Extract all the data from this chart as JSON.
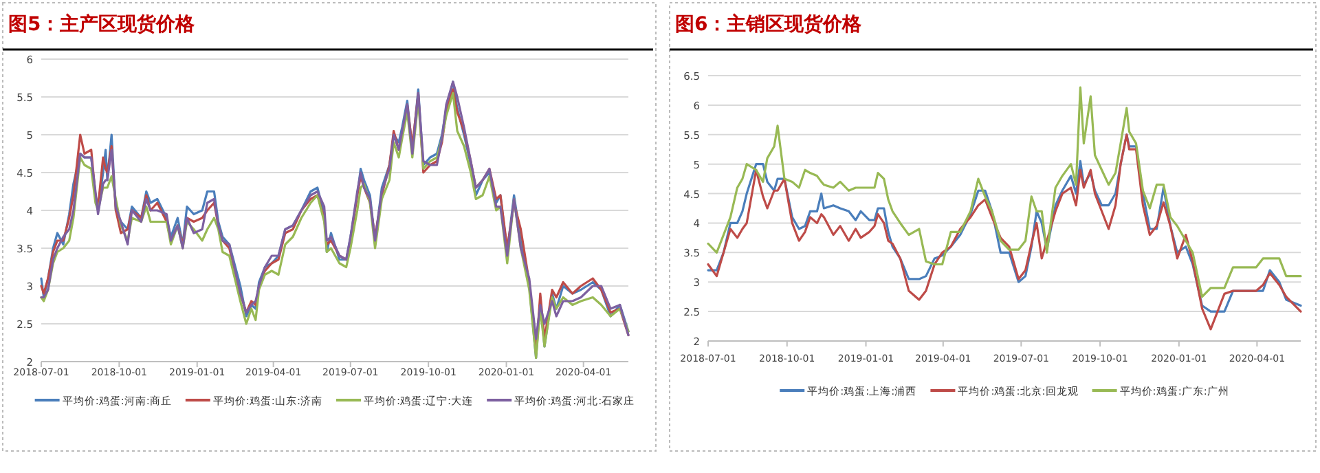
{
  "chart_data": [
    {
      "type": "line",
      "title": "图5：主产区现货价格",
      "grid": "y",
      "legend": "bottom",
      "ylim": [
        2,
        6
      ],
      "yticks": [
        2,
        2.5,
        3,
        3.5,
        4,
        4.5,
        5,
        5.5,
        6
      ],
      "xlim": [
        "2018-07-01",
        "2020-05-24"
      ],
      "xticks": [
        "2018-07-01",
        "2018-10-01",
        "2019-01-01",
        "2019-04-01",
        "2019-07-01",
        "2019-10-01",
        "2020-01-01",
        "2020-04-01"
      ],
      "x": [
        "2018-07-01",
        "2018-07-04",
        "2018-07-09",
        "2018-07-15",
        "2018-07-20",
        "2018-07-27",
        "2018-08-03",
        "2018-08-08",
        "2018-08-16",
        "2018-08-21",
        "2018-08-29",
        "2018-09-03",
        "2018-09-06",
        "2018-09-12",
        "2018-09-15",
        "2018-09-17",
        "2018-09-22",
        "2018-09-27",
        "2018-10-03",
        "2018-10-11",
        "2018-10-16",
        "2018-10-27",
        "2018-11-02",
        "2018-11-07",
        "2018-11-15",
        "2018-11-26",
        "2018-12-01",
        "2018-12-09",
        "2018-12-15",
        "2018-12-20",
        "2018-12-28",
        "2019-01-07",
        "2019-01-13",
        "2019-01-21",
        "2019-01-26",
        "2019-01-31",
        "2019-02-08",
        "2019-02-21",
        "2019-02-28",
        "2019-03-06",
        "2019-03-11",
        "2019-03-15",
        "2019-03-22",
        "2019-03-30",
        "2019-04-07",
        "2019-04-15",
        "2019-04-24",
        "2019-05-04",
        "2019-05-15",
        "2019-05-23",
        "2019-05-31",
        "2019-06-03",
        "2019-06-08",
        "2019-06-18",
        "2019-06-26",
        "2019-07-01",
        "2019-07-09",
        "2019-07-13",
        "2019-07-17",
        "2019-07-24",
        "2019-07-30",
        "2019-08-07",
        "2019-08-16",
        "2019-08-21",
        "2019-08-27",
        "2019-08-31",
        "2019-09-06",
        "2019-09-12",
        "2019-09-19",
        "2019-09-25",
        "2019-10-03",
        "2019-10-11",
        "2019-10-17",
        "2019-10-22",
        "2019-10-30",
        "2019-11-04",
        "2019-11-12",
        "2019-11-20",
        "2019-11-26",
        "2019-12-04",
        "2019-12-12",
        "2019-12-20",
        "2019-12-25",
        "2020-01-02",
        "2020-01-10",
        "2020-01-18",
        "2020-01-28",
        "2020-02-05",
        "2020-02-10",
        "2020-02-15",
        "2020-02-24",
        "2020-02-29",
        "2020-03-08",
        "2020-03-19",
        "2020-03-29",
        "2020-04-12",
        "2020-04-22",
        "2020-05-03",
        "2020-05-14",
        "2020-05-24"
      ],
      "series": [
        {
          "name": "平均价:鸡蛋:河南:商丘",
          "color": "#4a7ebb",
          "values": [
            3.1,
            2.85,
            3.1,
            3.5,
            3.7,
            3.55,
            3.95,
            4.35,
            4.75,
            4.7,
            4.7,
            4.2,
            4.0,
            4.5,
            4.8,
            4.4,
            5.0,
            4.0,
            3.85,
            3.75,
            4.05,
            3.9,
            4.25,
            4.1,
            4.15,
            3.9,
            3.65,
            3.9,
            3.55,
            4.05,
            3.95,
            4.0,
            4.25,
            4.25,
            3.85,
            3.65,
            3.55,
            3.0,
            2.6,
            2.75,
            2.7,
            3.05,
            3.25,
            3.3,
            3.4,
            3.75,
            3.8,
            4.0,
            4.25,
            4.3,
            3.95,
            3.45,
            3.7,
            3.35,
            3.35,
            3.65,
            4.2,
            4.55,
            4.4,
            4.2,
            3.6,
            4.3,
            4.6,
            5.0,
            4.9,
            5.1,
            5.45,
            4.8,
            5.6,
            4.6,
            4.7,
            4.75,
            5.0,
            5.35,
            5.7,
            5.35,
            5.0,
            4.6,
            4.2,
            4.4,
            4.5,
            4.1,
            4.2,
            3.45,
            4.2,
            3.6,
            3.0,
            2.05,
            2.8,
            2.2,
            2.9,
            2.7,
            3.0,
            2.9,
            2.95,
            3.05,
            2.95,
            2.6,
            2.75,
            2.4
          ]
        },
        {
          "name": "平均价:鸡蛋:山东:济南",
          "color": "#be4b48",
          "values": [
            3.0,
            2.9,
            3.1,
            3.45,
            3.6,
            3.6,
            3.9,
            4.2,
            5.0,
            4.75,
            4.8,
            4.2,
            4.05,
            4.7,
            4.55,
            4.5,
            4.85,
            4.0,
            3.7,
            3.75,
            4.0,
            3.9,
            4.2,
            4.0,
            4.1,
            3.85,
            3.6,
            3.8,
            3.55,
            3.9,
            3.85,
            3.9,
            4.0,
            4.1,
            3.8,
            3.6,
            3.5,
            2.9,
            2.65,
            2.8,
            2.75,
            3.0,
            3.2,
            3.3,
            3.35,
            3.7,
            3.75,
            4.0,
            4.15,
            4.2,
            3.9,
            3.55,
            3.6,
            3.4,
            3.35,
            3.6,
            4.2,
            4.45,
            4.3,
            4.1,
            3.65,
            4.2,
            4.6,
            5.05,
            4.8,
            5.0,
            5.4,
            4.85,
            5.55,
            4.5,
            4.6,
            4.65,
            4.9,
            5.3,
            5.6,
            5.3,
            5.05,
            4.65,
            4.3,
            4.4,
            4.55,
            4.15,
            4.2,
            3.5,
            4.1,
            3.75,
            3.05,
            2.1,
            2.9,
            2.3,
            2.95,
            2.85,
            3.05,
            2.9,
            3.0,
            3.1,
            2.95,
            2.65,
            2.7,
            2.35
          ]
        },
        {
          "name": "平均价:鸡蛋:辽宁:大连",
          "color": "#98b954",
          "values": [
            2.85,
            2.8,
            2.95,
            3.3,
            3.45,
            3.5,
            3.6,
            3.9,
            4.7,
            4.6,
            4.55,
            4.1,
            4.0,
            4.3,
            4.3,
            4.3,
            4.45,
            4.15,
            3.8,
            3.6,
            3.9,
            3.85,
            4.05,
            3.85,
            3.85,
            3.85,
            3.55,
            3.8,
            3.5,
            3.85,
            3.75,
            3.6,
            3.75,
            3.9,
            3.75,
            3.45,
            3.4,
            2.8,
            2.5,
            2.7,
            2.55,
            2.95,
            3.15,
            3.2,
            3.15,
            3.55,
            3.65,
            3.9,
            4.1,
            4.2,
            3.85,
            3.45,
            3.5,
            3.3,
            3.25,
            3.5,
            4.0,
            4.3,
            4.35,
            4.1,
            3.5,
            4.15,
            4.4,
            4.9,
            4.7,
            4.95,
            5.3,
            4.7,
            5.45,
            4.55,
            4.65,
            4.7,
            4.95,
            5.25,
            5.55,
            5.05,
            4.85,
            4.5,
            4.15,
            4.2,
            4.45,
            4.0,
            4.05,
            3.3,
            4.15,
            3.5,
            2.95,
            2.05,
            2.7,
            2.2,
            2.85,
            2.7,
            2.85,
            2.75,
            2.8,
            2.85,
            2.75,
            2.6,
            2.7,
            2.4
          ]
        },
        {
          "name": "平均价:鸡蛋:河北:石家庄",
          "color": "#7d60a0",
          "values": [
            2.85,
            2.85,
            2.95,
            3.35,
            3.5,
            3.65,
            3.75,
            4.0,
            4.75,
            4.7,
            4.7,
            4.25,
            3.95,
            4.35,
            4.4,
            4.4,
            4.8,
            4.05,
            3.85,
            3.55,
            4.0,
            3.85,
            4.15,
            4.0,
            4.0,
            3.95,
            3.6,
            3.8,
            3.5,
            3.9,
            3.7,
            3.75,
            4.1,
            4.15,
            3.8,
            3.6,
            3.55,
            2.9,
            2.65,
            2.75,
            2.8,
            3.0,
            3.25,
            3.4,
            3.4,
            3.75,
            3.8,
            4.0,
            4.2,
            4.25,
            4.05,
            3.6,
            3.65,
            3.4,
            3.35,
            3.65,
            4.25,
            4.5,
            4.3,
            4.15,
            3.6,
            4.25,
            4.55,
            5.0,
            4.8,
            5.05,
            5.4,
            4.75,
            5.55,
            4.65,
            4.6,
            4.6,
            4.95,
            5.4,
            5.7,
            5.5,
            5.1,
            4.65,
            4.3,
            4.4,
            4.55,
            4.05,
            4.05,
            3.4,
            4.15,
            3.5,
            3.1,
            2.3,
            2.75,
            2.5,
            2.8,
            2.6,
            2.8,
            2.8,
            2.85,
            3.0,
            3.0,
            2.7,
            2.75,
            2.35
          ]
        }
      ]
    },
    {
      "type": "line",
      "title": "图6：主销区现货价格",
      "grid": "y",
      "legend": "bottom",
      "ylim": [
        2,
        6.5
      ],
      "yticks": [
        2,
        2.5,
        3,
        3.5,
        4,
        4.5,
        5,
        5.5,
        6,
        6.5
      ],
      "xlim": [
        "2018-07-01",
        "2020-05-22"
      ],
      "xticks": [
        "2018-07-01",
        "2018-10-01",
        "2019-01-01",
        "2019-04-01",
        "2019-07-01",
        "2019-10-01",
        "2020-01-01",
        "2020-04-01"
      ],
      "x": [
        "2018-07-01",
        "2018-07-11",
        "2018-07-19",
        "2018-07-27",
        "2018-08-04",
        "2018-08-10",
        "2018-08-15",
        "2018-08-26",
        "2018-09-03",
        "2018-09-08",
        "2018-09-16",
        "2018-09-20",
        "2018-09-28",
        "2018-10-07",
        "2018-10-15",
        "2018-10-22",
        "2018-10-28",
        "2018-11-05",
        "2018-11-10",
        "2018-11-13",
        "2018-11-24",
        "2018-12-02",
        "2018-12-12",
        "2018-12-20",
        "2018-12-26",
        "2019-01-05",
        "2019-01-11",
        "2019-01-15",
        "2019-01-22",
        "2019-01-27",
        "2019-02-01",
        "2019-02-10",
        "2019-02-20",
        "2019-03-04",
        "2019-03-12",
        "2019-03-22",
        "2019-03-31",
        "2019-04-10",
        "2019-04-21",
        "2019-05-03",
        "2019-05-12",
        "2019-05-20",
        "2019-05-28",
        "2019-06-07",
        "2019-06-17",
        "2019-06-28",
        "2019-07-06",
        "2019-07-13",
        "2019-07-19",
        "2019-07-25",
        "2019-07-31",
        "2019-08-10",
        "2019-08-18",
        "2019-08-28",
        "2019-09-03",
        "2019-09-08",
        "2019-09-12",
        "2019-09-20",
        "2019-09-25",
        "2019-10-03",
        "2019-10-11",
        "2019-10-19",
        "2019-10-25",
        "2019-11-01",
        "2019-11-04",
        "2019-11-12",
        "2019-11-20",
        "2019-11-28",
        "2019-12-06",
        "2019-12-14",
        "2019-12-22",
        "2019-12-30",
        "2020-01-09",
        "2020-01-17",
        "2020-01-28",
        "2020-02-07",
        "2020-02-23",
        "2020-03-04",
        "2020-03-31",
        "2020-04-08",
        "2020-04-16",
        "2020-04-27",
        "2020-05-05",
        "2020-05-22"
      ],
      "series": [
        {
          "name": "平均价:鸡蛋:上海:浦西",
          "color": "#4a7ebb",
          "values": [
            3.2,
            3.2,
            3.5,
            4.0,
            4.0,
            4.2,
            4.5,
            5.0,
            5.0,
            4.7,
            4.55,
            4.75,
            4.75,
            4.1,
            3.9,
            3.95,
            4.2,
            4.2,
            4.5,
            4.25,
            4.3,
            4.25,
            4.2,
            4.05,
            4.2,
            4.05,
            4.05,
            4.25,
            4.25,
            3.85,
            3.6,
            3.4,
            3.05,
            3.05,
            3.1,
            3.4,
            3.45,
            3.6,
            3.8,
            4.15,
            4.55,
            4.55,
            4.2,
            3.5,
            3.5,
            3.0,
            3.1,
            3.6,
            4.2,
            4.0,
            3.55,
            4.3,
            4.55,
            4.8,
            4.5,
            5.05,
            4.65,
            4.85,
            4.55,
            4.3,
            4.3,
            4.5,
            5.0,
            5.5,
            5.3,
            5.3,
            4.5,
            3.9,
            3.9,
            4.6,
            3.95,
            3.5,
            3.6,
            3.3,
            2.6,
            2.5,
            2.5,
            2.85,
            2.85,
            2.85,
            3.2,
            3.0,
            2.7,
            2.6
          ]
        },
        {
          "name": "平均价:鸡蛋:北京:回龙观",
          "color": "#be4b48",
          "values": [
            3.3,
            3.1,
            3.5,
            3.9,
            3.75,
            3.9,
            4.0,
            4.9,
            4.45,
            4.25,
            4.55,
            4.55,
            4.75,
            4.0,
            3.7,
            3.85,
            4.1,
            4.0,
            4.15,
            4.1,
            3.8,
            3.95,
            3.7,
            3.9,
            3.75,
            3.85,
            3.95,
            4.15,
            4.0,
            3.7,
            3.65,
            3.4,
            2.85,
            2.7,
            2.85,
            3.3,
            3.5,
            3.6,
            3.9,
            4.1,
            4.3,
            4.4,
            4.1,
            3.75,
            3.6,
            3.05,
            3.2,
            3.65,
            4.0,
            3.4,
            3.7,
            4.2,
            4.5,
            4.6,
            4.3,
            4.9,
            4.6,
            4.9,
            4.5,
            4.2,
            3.9,
            4.3,
            5.0,
            5.5,
            5.25,
            5.25,
            4.3,
            3.8,
            3.95,
            4.35,
            3.95,
            3.4,
            3.8,
            3.35,
            2.55,
            2.2,
            2.8,
            2.85,
            2.85,
            2.95,
            3.15,
            2.95,
            2.75,
            2.5
          ]
        },
        {
          "name": "平均价:鸡蛋:广东:广州",
          "color": "#98b954",
          "values": [
            3.65,
            3.5,
            3.8,
            4.1,
            4.6,
            4.75,
            5.0,
            4.9,
            4.7,
            5.1,
            5.3,
            5.65,
            4.75,
            4.7,
            4.6,
            4.9,
            4.85,
            4.8,
            4.7,
            4.65,
            4.6,
            4.7,
            4.55,
            4.6,
            4.6,
            4.6,
            4.6,
            4.85,
            4.75,
            4.4,
            4.2,
            4.0,
            3.8,
            3.9,
            3.35,
            3.3,
            3.3,
            3.85,
            3.85,
            4.2,
            4.75,
            4.45,
            4.2,
            3.7,
            3.55,
            3.55,
            3.7,
            4.45,
            4.2,
            4.2,
            3.5,
            4.6,
            4.8,
            5.0,
            4.65,
            6.3,
            5.35,
            6.15,
            5.15,
            4.9,
            4.65,
            4.85,
            5.35,
            5.95,
            5.55,
            5.35,
            4.55,
            4.25,
            4.65,
            4.65,
            4.1,
            3.95,
            3.7,
            3.5,
            2.75,
            2.9,
            2.9,
            3.25,
            3.25,
            3.4,
            3.4,
            3.4,
            3.1,
            3.1
          ]
        }
      ]
    }
  ]
}
